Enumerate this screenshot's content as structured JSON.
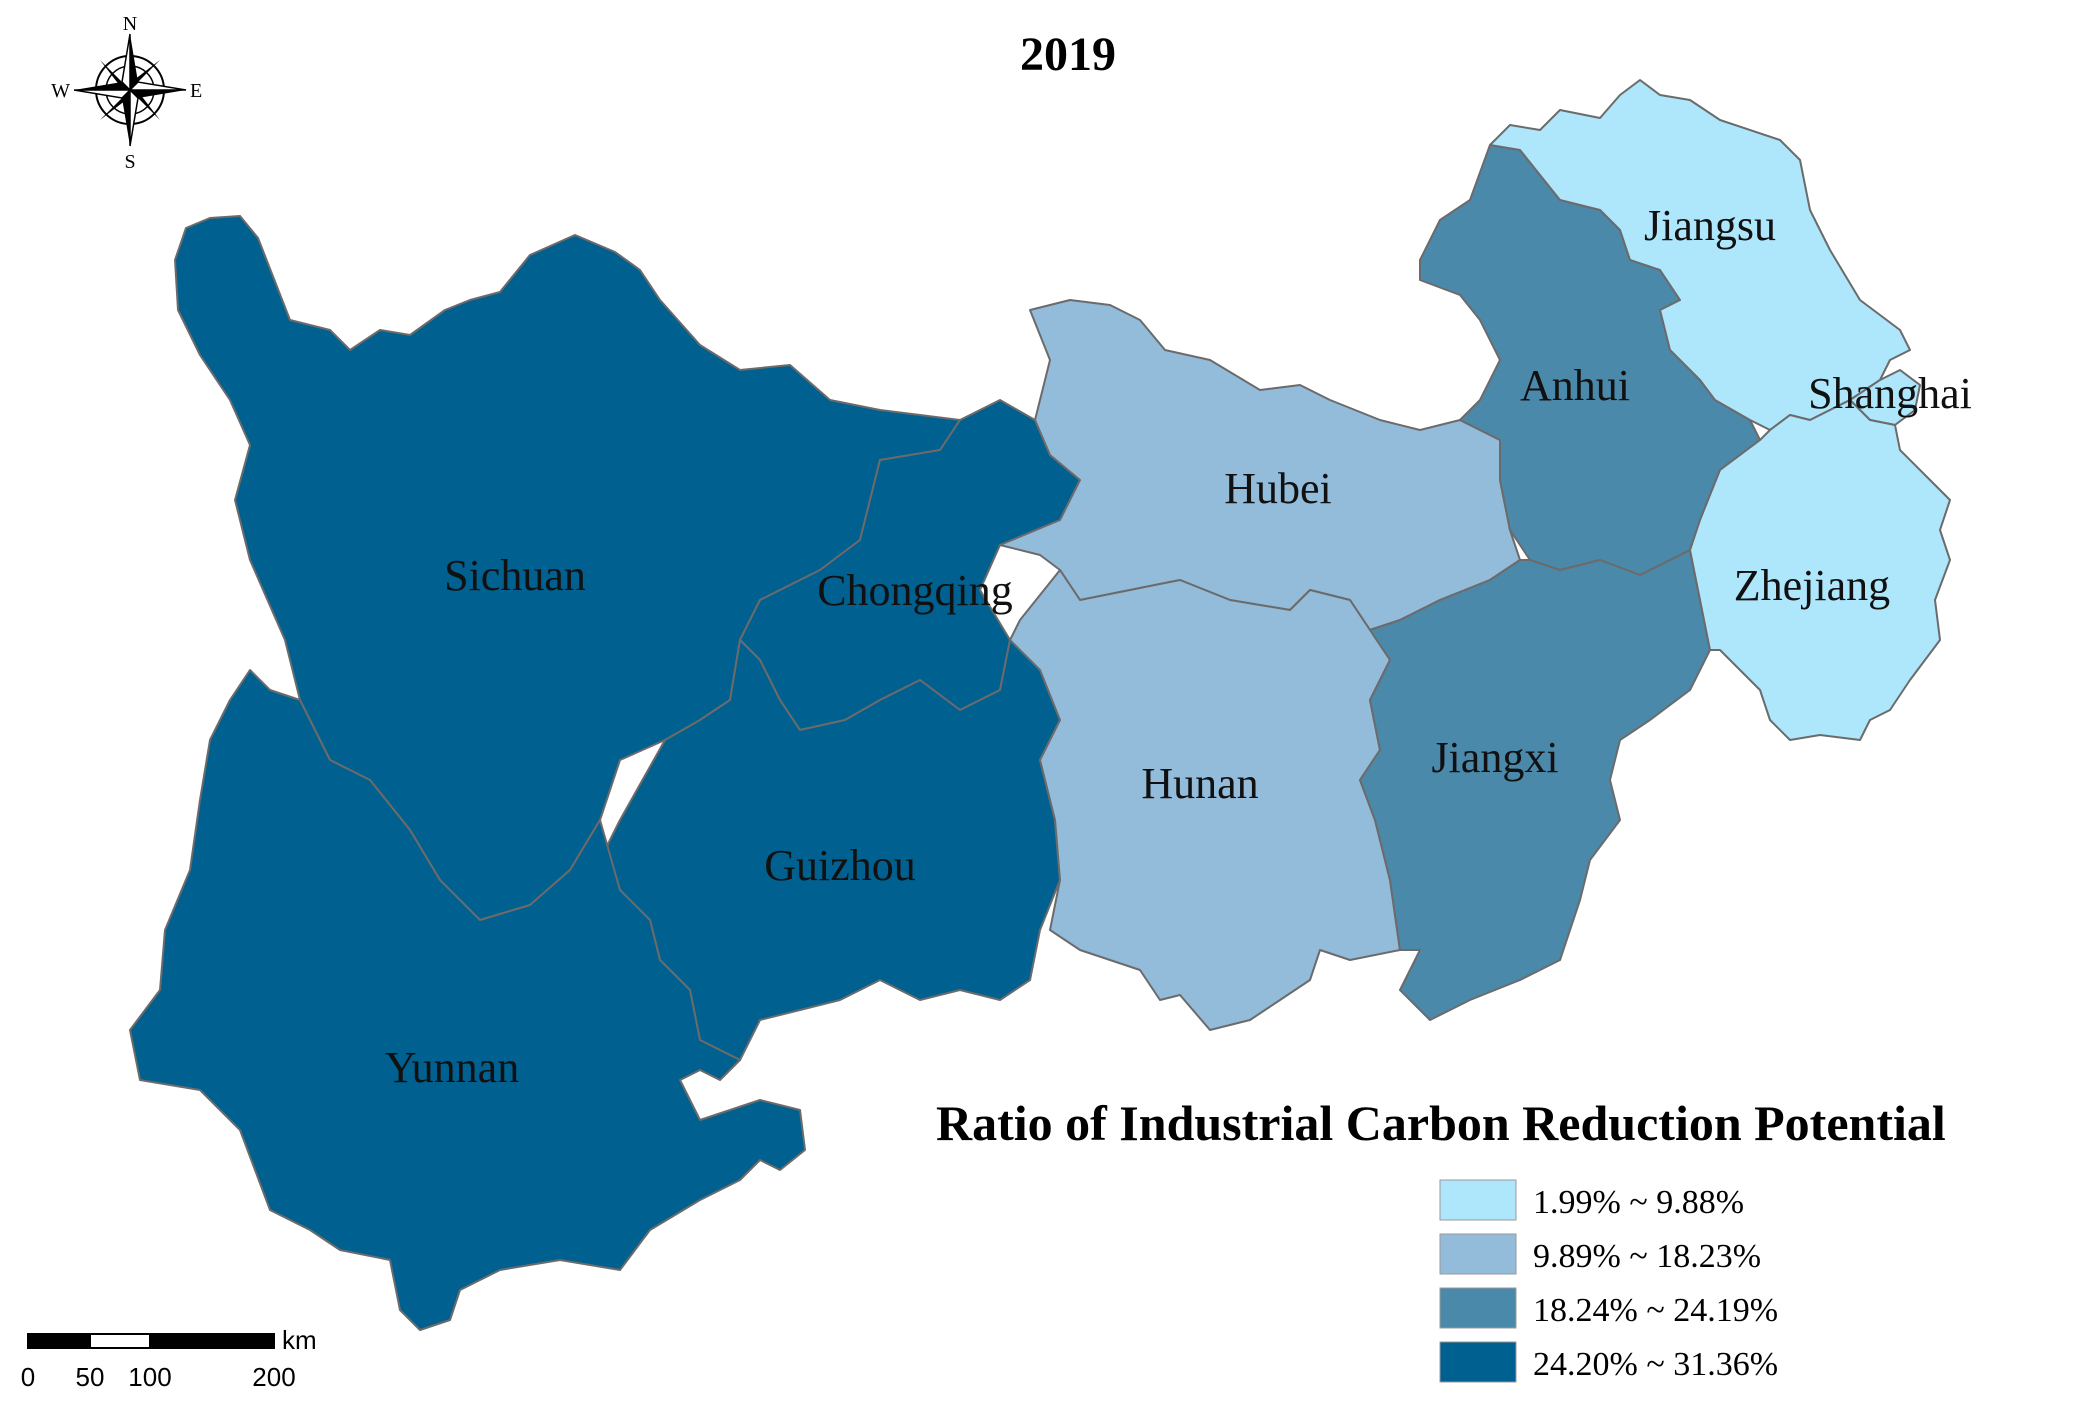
{
  "title": "2019",
  "compass": {
    "n": "N",
    "s": "S",
    "e": "E",
    "w": "W"
  },
  "legend": {
    "title": "Ratio of Industrial Carbon Reduction Potential",
    "classes": [
      {
        "label": "1.99% ~ 9.88%",
        "color": "#aee6fb"
      },
      {
        "label": "9.89% ~ 18.23%",
        "color": "#93bbda"
      },
      {
        "label": "18.24% ~ 24.19%",
        "color": "#4b89ab"
      },
      {
        "label": "24.20% ~ 31.36%",
        "color": "#00608f"
      }
    ]
  },
  "provinces": [
    {
      "name": "Sichuan",
      "class": 3
    },
    {
      "name": "Chongqing",
      "class": 3
    },
    {
      "name": "Guizhou",
      "class": 3
    },
    {
      "name": "Yunnan",
      "class": 3
    },
    {
      "name": "Hubei",
      "class": 1
    },
    {
      "name": "Hunan",
      "class": 1
    },
    {
      "name": "Anhui",
      "class": 2
    },
    {
      "name": "Jiangxi",
      "class": 2
    },
    {
      "name": "Jiangsu",
      "class": 0
    },
    {
      "name": "Shanghai",
      "class": 0
    },
    {
      "name": "Zhejiang",
      "class": 0
    }
  ],
  "scale_bar": {
    "ticks": [
      "0",
      "50",
      "100",
      "200"
    ],
    "unit": "km"
  }
}
